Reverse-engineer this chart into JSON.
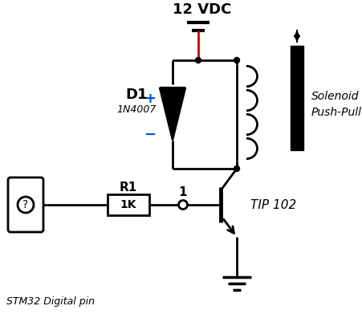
{
  "bg_color": "#ffffff",
  "line_color": "#000000",
  "red_color": "#cc0000",
  "blue_color": "#0055cc",
  "label_12vdc": "12 VDC",
  "label_d1": "D1",
  "label_1n4007": "1N4007",
  "label_r1": "R1",
  "label_1k": "1K",
  "label_1": "1",
  "label_tip102": "TIP 102",
  "label_solenoid": "Solenoid\nPush-Pull",
  "label_stm32": "STM32 Digital pin"
}
